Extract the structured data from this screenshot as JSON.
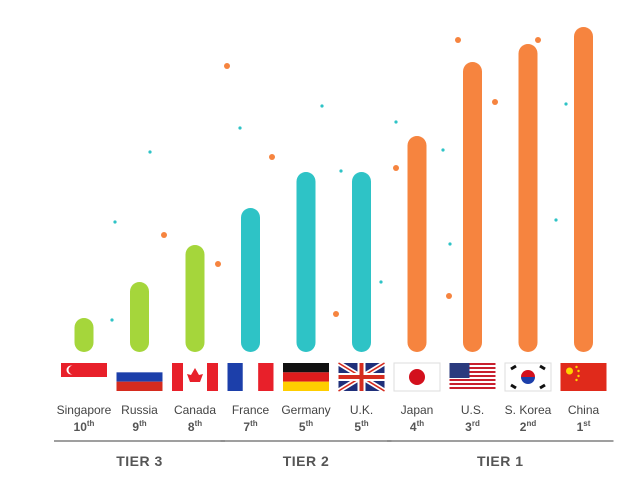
{
  "chart_data": {
    "type": "bar",
    "categories": [
      "Singapore",
      "Russia",
      "Canada",
      "France",
      "Germany",
      "U.K.",
      "Japan",
      "U.S.",
      "S. Korea",
      "China"
    ],
    "ranks": [
      "10",
      "9",
      "8",
      "7",
      "5",
      "5",
      "4",
      "3",
      "2",
      "1"
    ],
    "rank_suffixes": [
      "th",
      "th",
      "th",
      "th",
      "th",
      "th",
      "th",
      "rd",
      "nd",
      "st"
    ],
    "series": [
      {
        "name": "TIER 3",
        "color": "#a5d63b",
        "values": [
          34,
          70,
          107,
          null,
          null,
          null,
          null,
          null,
          null,
          null
        ]
      },
      {
        "name": "TIER 2",
        "color": "#2ec3c6",
        "values": [
          null,
          null,
          null,
          144,
          180,
          180,
          null,
          null,
          null,
          null
        ]
      },
      {
        "name": "TIER 1",
        "color": "#f6843f",
        "values": [
          null,
          null,
          null,
          null,
          null,
          null,
          216,
          290,
          308,
          325
        ]
      }
    ]
  }
}
